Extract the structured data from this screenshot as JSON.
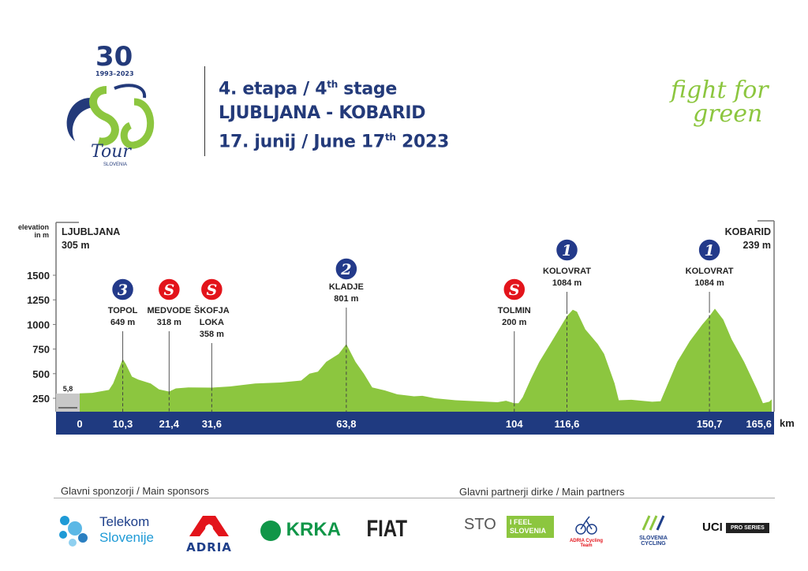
{
  "logo": {
    "number": "30",
    "years": "1993–2023",
    "name": "Tour",
    "country": "SLOVENIA"
  },
  "header": {
    "line1_pre": "4. etapa / 4",
    "line1_sup": "th",
    "line1_post": " stage",
    "line2": "LJUBLJANA - KOBARID",
    "line3_pre": "17. junij / June 17",
    "line3_sup": "th",
    "line3_post": "  2023"
  },
  "slogan": {
    "line1": "fight for",
    "line2": "green"
  },
  "colors": {
    "profile": "#8cc63f",
    "band": "#1f3a80",
    "kom": "#233a8a",
    "sprint": "#e3141b",
    "neutral": "#c8c8c8"
  },
  "chart_data": {
    "type": "area",
    "ylabel": "elevation in m",
    "xunit": "km",
    "yticks": [
      250,
      500,
      750,
      1000,
      1250,
      1500
    ],
    "xlim": [
      0,
      165.6
    ],
    "ylim": [
      114,
      1500
    ],
    "start": {
      "name": "LJUBLJANA",
      "elev": "305 m"
    },
    "finish": {
      "name": "KOBARID",
      "elev": "239 m"
    },
    "neutral_label": "5,8",
    "km_labels": [
      "0",
      "10,3",
      "21,4",
      "31,6",
      "63,8",
      "104",
      "116,6",
      "150,7",
      "165,6"
    ],
    "km_values": [
      0,
      10.3,
      21.4,
      31.6,
      63.8,
      104,
      116.6,
      150.7,
      165.6
    ],
    "profile": [
      [
        0,
        300
      ],
      [
        3,
        305
      ],
      [
        5,
        320
      ],
      [
        7,
        335
      ],
      [
        8,
        400
      ],
      [
        9.5,
        560
      ],
      [
        10.3,
        649
      ],
      [
        11,
        600
      ],
      [
        12.5,
        470
      ],
      [
        14,
        440
      ],
      [
        17,
        400
      ],
      [
        19,
        340
      ],
      [
        21.4,
        318
      ],
      [
        23,
        350
      ],
      [
        26,
        360
      ],
      [
        31.6,
        358
      ],
      [
        36,
        370
      ],
      [
        42,
        400
      ],
      [
        48,
        410
      ],
      [
        53,
        430
      ],
      [
        55,
        500
      ],
      [
        57,
        520
      ],
      [
        59,
        620
      ],
      [
        62,
        700
      ],
      [
        63.8,
        801
      ],
      [
        66,
        620
      ],
      [
        68,
        500
      ],
      [
        70,
        360
      ],
      [
        73,
        330
      ],
      [
        76,
        290
      ],
      [
        80,
        270
      ],
      [
        82,
        275
      ],
      [
        85,
        250
      ],
      [
        90,
        230
      ],
      [
        100,
        210
      ],
      [
        102,
        225
      ],
      [
        104,
        200
      ],
      [
        105,
        200
      ],
      [
        106,
        260
      ],
      [
        108,
        450
      ],
      [
        110,
        620
      ],
      [
        113,
        830
      ],
      [
        116.6,
        1084
      ],
      [
        118,
        1150
      ],
      [
        119,
        1130
      ],
      [
        121,
        950
      ],
      [
        124,
        800
      ],
      [
        125.5,
        700
      ],
      [
        128,
        400
      ],
      [
        129,
        230
      ],
      [
        132,
        235
      ],
      [
        137,
        215
      ],
      [
        139,
        220
      ],
      [
        141,
        420
      ],
      [
        143,
        620
      ],
      [
        146,
        830
      ],
      [
        149,
        1000
      ],
      [
        150.7,
        1084
      ],
      [
        152,
        1160
      ],
      [
        154,
        1050
      ],
      [
        156,
        850
      ],
      [
        159,
        620
      ],
      [
        162,
        350
      ],
      [
        163.5,
        200
      ],
      [
        165,
        215
      ],
      [
        165.6,
        239
      ]
    ],
    "points": [
      {
        "km": 10.3,
        "type": "kom",
        "badge": "3",
        "name": [
          "TOPOL"
        ],
        "elev": "649 m",
        "peak": 649
      },
      {
        "km": 21.4,
        "type": "sprint",
        "badge": "S",
        "name": [
          "MEDVODE"
        ],
        "elev": "318 m",
        "peak": 318
      },
      {
        "km": 31.6,
        "type": "sprint",
        "badge": "S",
        "name": [
          "ŠKOFJA",
          "LOKA"
        ],
        "elev": "358 m",
        "peak": 358
      },
      {
        "km": 63.8,
        "type": "kom",
        "badge": "2",
        "name": [
          "KLADJE"
        ],
        "elev": "801 m",
        "peak": 801
      },
      {
        "km": 104,
        "type": "sprint",
        "badge": "S",
        "name": [
          "TOLMIN"
        ],
        "elev": "200 m",
        "peak": 200
      },
      {
        "km": 116.6,
        "type": "kom",
        "badge": "1",
        "name": [
          "KOLOVRAT"
        ],
        "elev": "1084 m",
        "peak": 1140
      },
      {
        "km": 150.7,
        "type": "kom",
        "badge": "1",
        "name": [
          "KOLOVRAT"
        ],
        "elev": "1084 m",
        "peak": 1150
      }
    ]
  },
  "sponsors": {
    "main_label": "Glavni sponzorji / Main sponsors",
    "partners_label": "Glavni partnerji dirke / Main partners",
    "main": [
      "Telekom",
      "Slovenije",
      "ADRIA",
      "KRKA",
      "FIAT"
    ],
    "partners": [
      "STO",
      "I FEEL SLOVENIA",
      "ADRIA Cycling Team",
      "SLOVENIA CYCLING",
      "UCI",
      "PRO SERIES"
    ]
  }
}
